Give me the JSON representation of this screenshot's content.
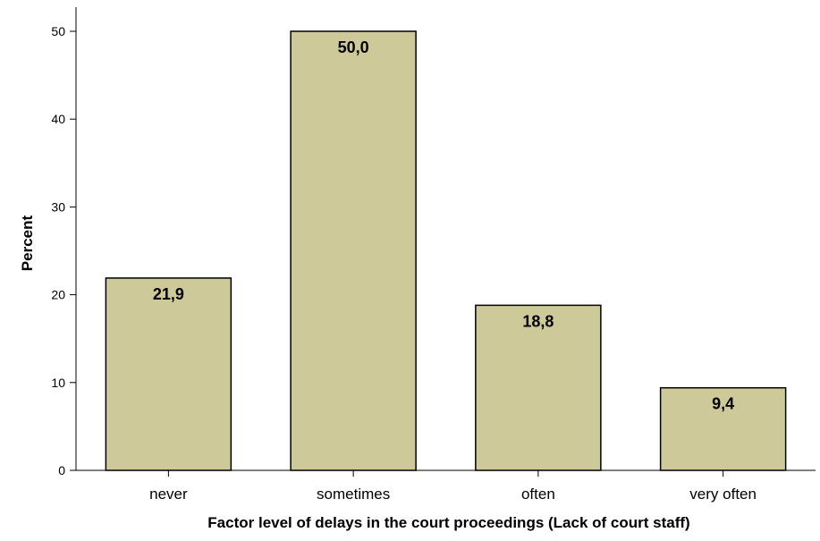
{
  "chart_data": {
    "type": "bar",
    "categories": [
      "never",
      "sometimes",
      "often",
      "very often"
    ],
    "values": [
      21.9,
      50.0,
      18.8,
      9.4
    ],
    "data_labels": [
      "21,9",
      "50,0",
      "18,8",
      "9,4"
    ],
    "xlabel": "Factor level of delays in the court proceedings (Lack of court staff)",
    "ylabel": "Percent",
    "ylim": [
      0,
      50
    ],
    "yticks": [
      0,
      10,
      20,
      30,
      40,
      50
    ],
    "grid": false,
    "colors": {
      "bar_fill": "#cdc998",
      "bar_stroke": "#000000"
    }
  }
}
